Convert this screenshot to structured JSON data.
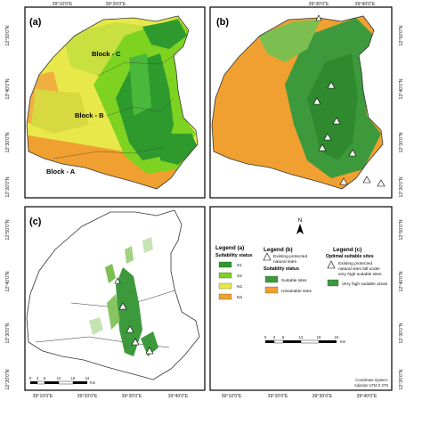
{
  "panels": {
    "a": "(a)",
    "b": "(b)",
    "c": "(c)"
  },
  "blocks": {
    "a": "Block - A",
    "b": "Block - B",
    "c": "Block - C"
  },
  "ticks": {
    "top": [
      "39°10'0\"E",
      "39°20'0\"E",
      "39°30'0\"E",
      "39°40'0\"E"
    ],
    "bottom": [
      "39°10'0\"E",
      "39°20'0\"E",
      "39°30'0\"E",
      "39°40'0\"E"
    ],
    "left": [
      "12°50'0\"N",
      "12°40'0\"N",
      "12°30'0\"N",
      "12°20'0\"N"
    ],
    "right": [
      "12°50'0\"N",
      "12°40'0\"N",
      "12°30'0\"N",
      "12°20'0\"N"
    ]
  },
  "legend": {
    "a_title": "Legend (a)",
    "a_subtitle": "Suitability status",
    "a_items": [
      {
        "label": "S1",
        "color": "#2e9a2e"
      },
      {
        "label": "S2",
        "color": "#7ed321"
      },
      {
        "label": "N1",
        "color": "#e8e84a"
      },
      {
        "label": "N2",
        "color": "#f0a030"
      }
    ],
    "b_title": "Legend (b)",
    "b_protected": "Existing protected natural sites",
    "b_subtitle": "Suitablity status",
    "b_items": [
      {
        "label": "Suitable sites",
        "color": "#3c9a3c"
      },
      {
        "label": "Unsuitable sites",
        "color": "#f0a030"
      }
    ],
    "c_title": "Legend (c)",
    "c_subtitle": "Optimal suitable sites",
    "c_protected": "Existing protected natural sites fall under very high suitable sites",
    "c_item": {
      "label": "Very high suitable areas",
      "color": "#3c9a3c"
    }
  },
  "north": "N",
  "scale": {
    "labels": [
      "0",
      "3",
      "6",
      "12",
      "18",
      "24"
    ],
    "unit": "Km"
  },
  "coord_system": "Coordinate System: Adindan UTM Z 37N",
  "colors": {
    "n2": "#f0a030",
    "n1": "#e8e84a",
    "s2": "#7ed321",
    "s1": "#2e9a2e",
    "suitable": "#3c9a3c",
    "frame": "#000000"
  }
}
